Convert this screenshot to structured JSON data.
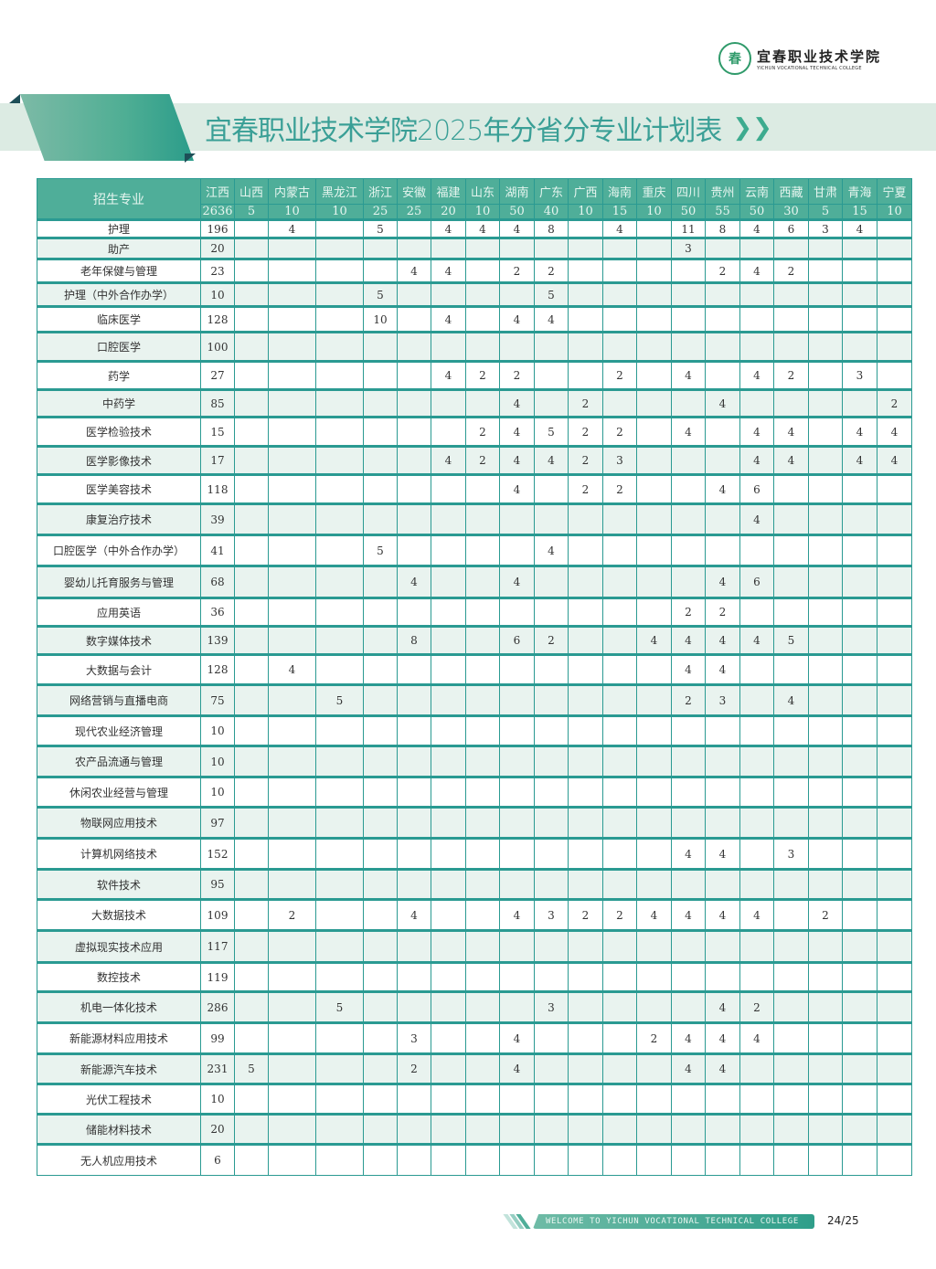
{
  "header": {
    "logo_cn": "宜春职业技术学院",
    "logo_en": "YICHUN VOCATIONAL TECHNICAL COLLEGE",
    "title": "宜春职业技术学院2025年分省分专业计划表",
    "title_chevron": "❯❯"
  },
  "colors": {
    "accent": "#4fae99",
    "grid": "#2a9a92",
    "alt_row": "#e9f3ef",
    "title": "#3a9f96"
  },
  "table": {
    "major_header": "招生专业",
    "provinces": [
      "江西",
      "山西",
      "内蒙古",
      "黑龙江",
      "浙江",
      "安徽",
      "福建",
      "山东",
      "湖南",
      "广东",
      "广西",
      "海南",
      "重庆",
      "四川",
      "贵州",
      "云南",
      "西藏",
      "甘肃",
      "青海",
      "宁夏"
    ],
    "totals": [
      "2636",
      "5",
      "10",
      "10",
      "25",
      "25",
      "20",
      "10",
      "50",
      "40",
      "10",
      "15",
      "10",
      "50",
      "55",
      "50",
      "30",
      "5",
      "15",
      "10"
    ],
    "rows": [
      {
        "major": "护理",
        "values": [
          "196",
          "",
          "4",
          "",
          "5",
          "",
          "4",
          "4",
          "4",
          "8",
          "",
          "4",
          "",
          "11",
          "8",
          "4",
          "6",
          "3",
          "4",
          ""
        ]
      },
      {
        "major": "助产",
        "values": [
          "20",
          "",
          "",
          "",
          "",
          "",
          "",
          "",
          "",
          "",
          "",
          "",
          "",
          "3",
          "",
          "",
          "",
          "",
          "",
          ""
        ]
      },
      {
        "major": "老年保健与管理",
        "values": [
          "23",
          "",
          "",
          "",
          "",
          "4",
          "4",
          "",
          "2",
          "2",
          "",
          "",
          "",
          "",
          "2",
          "4",
          "2",
          "",
          "",
          ""
        ]
      },
      {
        "major": "护理（中外合作办学）",
        "values": [
          "10",
          "",
          "",
          "",
          "5",
          "",
          "",
          "",
          "",
          "5",
          "",
          "",
          "",
          "",
          "",
          "",
          "",
          "",
          "",
          ""
        ]
      },
      {
        "major": "临床医学",
        "values": [
          "128",
          "",
          "",
          "",
          "10",
          "",
          "4",
          "",
          "4",
          "4",
          "",
          "",
          "",
          "",
          "",
          "",
          "",
          "",
          "",
          ""
        ]
      },
      {
        "major": "口腔医学",
        "values": [
          "100"
        ]
      },
      {
        "major": "药学",
        "values": [
          "27",
          "",
          "",
          "",
          "",
          "",
          "4",
          "2",
          "2",
          "",
          "",
          "2",
          "",
          "4",
          "",
          "4",
          "2",
          "",
          "3",
          ""
        ]
      },
      {
        "major": "中药学",
        "values": [
          "85",
          "",
          "",
          "",
          "",
          "",
          "",
          "",
          "4",
          "",
          "2",
          "",
          "",
          "",
          "4",
          "",
          "",
          "",
          "",
          "2"
        ]
      },
      {
        "major": "医学检验技术",
        "values": [
          "15",
          "",
          "",
          "",
          "",
          "",
          "",
          "2",
          "4",
          "5",
          "2",
          "2",
          "",
          "4",
          "",
          "4",
          "4",
          "",
          "4",
          "4"
        ]
      },
      {
        "major": "医学影像技术",
        "values": [
          "17",
          "",
          "",
          "",
          "",
          "",
          "4",
          "2",
          "4",
          "4",
          "2",
          "3",
          "",
          "",
          "",
          "4",
          "4",
          "",
          "4",
          "4"
        ]
      },
      {
        "major": "医学美容技术",
        "values": [
          "118",
          "",
          "",
          "",
          "",
          "",
          "",
          "",
          "4",
          "",
          "2",
          "2",
          "",
          "",
          "4",
          "6",
          "",
          "",
          "",
          ""
        ]
      },
      {
        "major": "康复治疗技术",
        "values": [
          "39",
          "",
          "",
          "",
          "",
          "",
          "",
          "",
          "",
          "",
          "",
          "",
          "",
          "",
          "",
          "4",
          "",
          "",
          "",
          ""
        ]
      },
      {
        "major": "口腔医学（中外合作办学）",
        "values": [
          "41",
          "",
          "",
          "",
          "5",
          "",
          "",
          "",
          "",
          "4",
          "",
          "",
          "",
          "",
          "",
          "",
          "",
          "",
          "",
          ""
        ]
      },
      {
        "major": "婴幼儿托育服务与管理",
        "values": [
          "68",
          "",
          "",
          "",
          "",
          "4",
          "",
          "",
          "4",
          "",
          "",
          "",
          "",
          "",
          "4",
          "6",
          "",
          "",
          "",
          ""
        ]
      },
      {
        "major": "应用英语",
        "values": [
          "36",
          "",
          "",
          "",
          "",
          "",
          "",
          "",
          "",
          "",
          "",
          "",
          "",
          "2",
          "2",
          "",
          "",
          "",
          "",
          ""
        ]
      },
      {
        "major": "数字媒体技术",
        "values": [
          "139",
          "",
          "",
          "",
          "",
          "8",
          "",
          "",
          "6",
          "2",
          "",
          "",
          "4",
          "4",
          "4",
          "4",
          "5",
          "",
          "",
          ""
        ]
      },
      {
        "major": "大数据与会计",
        "values": [
          "128",
          "",
          "4",
          "",
          "",
          "",
          "",
          "",
          "",
          "",
          "",
          "",
          "",
          "4",
          "4",
          "",
          "",
          "",
          "",
          ""
        ]
      },
      {
        "major": "网络营销与直播电商",
        "values": [
          "75",
          "",
          "",
          "5",
          "",
          "",
          "",
          "",
          "",
          "",
          "",
          "",
          "",
          "2",
          "3",
          "",
          "4",
          "",
          "",
          ""
        ]
      },
      {
        "major": "现代农业经济管理",
        "values": [
          "10"
        ]
      },
      {
        "major": "农产品流通与管理",
        "values": [
          "10"
        ]
      },
      {
        "major": "休闲农业经营与管理",
        "values": [
          "10"
        ]
      },
      {
        "major": "物联网应用技术",
        "values": [
          "97"
        ]
      },
      {
        "major": "计算机网络技术",
        "values": [
          "152",
          "",
          "",
          "",
          "",
          "",
          "",
          "",
          "",
          "",
          "",
          "",
          "",
          "4",
          "4",
          "",
          "3",
          "",
          "",
          ""
        ]
      },
      {
        "major": "软件技术",
        "values": [
          "95"
        ]
      },
      {
        "major": "大数据技术",
        "values": [
          "109",
          "",
          "2",
          "",
          "",
          "4",
          "",
          "",
          "4",
          "3",
          "2",
          "2",
          "4",
          "4",
          "4",
          "4",
          "",
          "2",
          "",
          ""
        ]
      },
      {
        "major": "虚拟现实技术应用",
        "values": [
          "117"
        ]
      },
      {
        "major": "数控技术",
        "values": [
          "119"
        ]
      },
      {
        "major": "机电一体化技术",
        "values": [
          "286",
          "",
          "",
          "5",
          "",
          "",
          "",
          "",
          "",
          "3",
          "",
          "",
          "",
          "",
          "4",
          "2",
          "",
          "",
          "",
          ""
        ]
      },
      {
        "major": "新能源材料应用技术",
        "values": [
          "99",
          "",
          "",
          "",
          "",
          "3",
          "",
          "",
          "4",
          "",
          "",
          "",
          "2",
          "4",
          "4",
          "4",
          "",
          "",
          "",
          ""
        ]
      },
      {
        "major": "新能源汽车技术",
        "values": [
          "231",
          "5",
          "",
          "",
          "",
          "2",
          "",
          "",
          "4",
          "",
          "",
          "",
          "",
          "4",
          "4",
          "",
          "",
          "",
          "",
          ""
        ]
      },
      {
        "major": "光伏工程技术",
        "values": [
          "10"
        ]
      },
      {
        "major": "储能材料技术",
        "values": [
          "20"
        ]
      },
      {
        "major": "无人机应用技术",
        "values": [
          "6"
        ]
      }
    ]
  },
  "footer": {
    "welcome": "WELCOME  TO YICHUN VOCATIONAL TECHNICAL COLLEGE",
    "page": "24/25"
  }
}
